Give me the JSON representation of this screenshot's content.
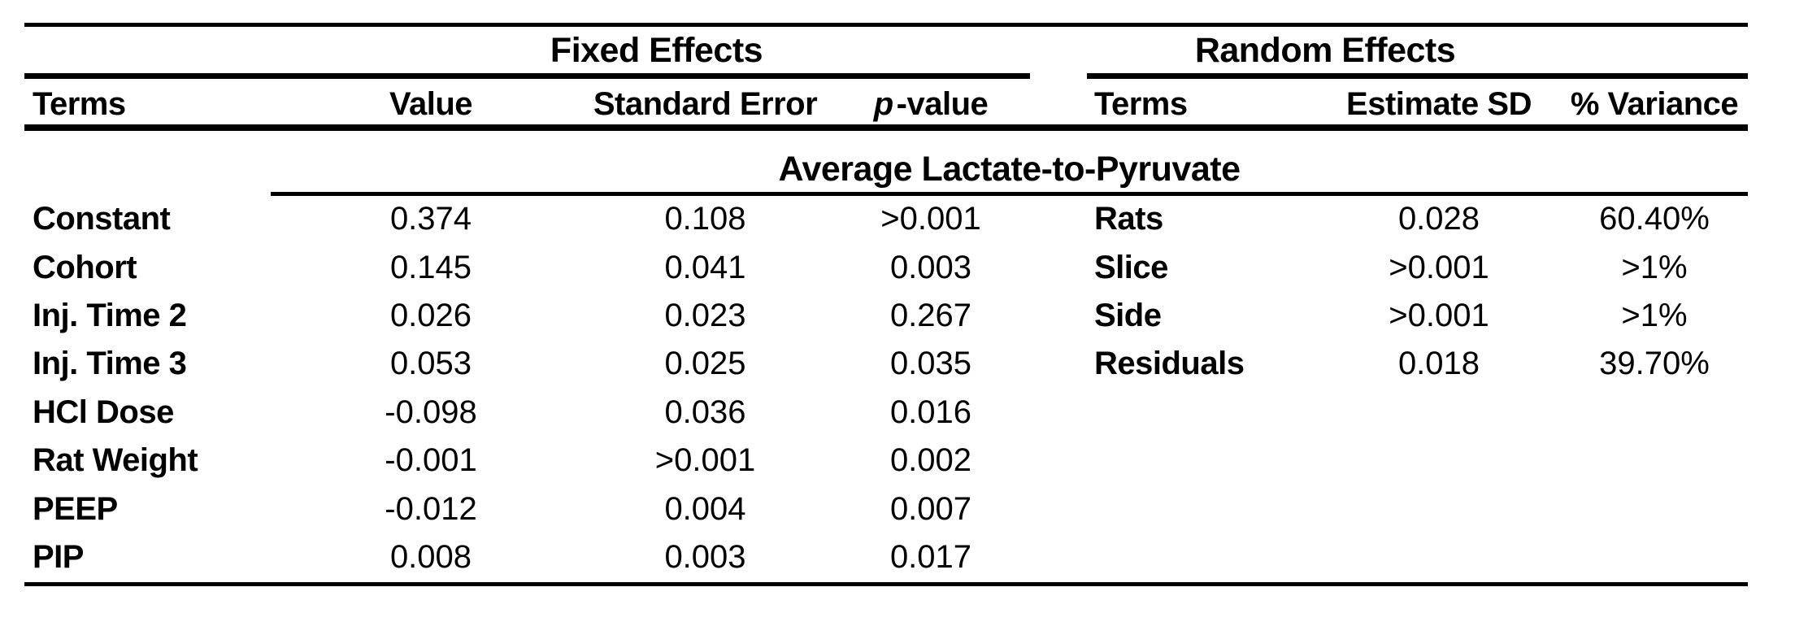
{
  "table": {
    "sections": {
      "fixed_title": "Fixed Effects",
      "random_title": "Random Effects"
    },
    "subtitle": "Average Lactate-to-Pyruvate",
    "fixed": {
      "headers": {
        "terms": "Terms",
        "value": "Value",
        "standard_error": "Standard Error",
        "p_italic": "p",
        "p_suffix": "-value"
      },
      "rows": [
        {
          "term": "Constant",
          "value": "0.374",
          "standard_error": "0.108",
          "p_value": ">0.001"
        },
        {
          "term": "Cohort",
          "value": "0.145",
          "standard_error": "0.041",
          "p_value": "0.003"
        },
        {
          "term": "Inj. Time 2",
          "value": "0.026",
          "standard_error": "0.023",
          "p_value": "0.267"
        },
        {
          "term": "Inj. Time 3",
          "value": "0.053",
          "standard_error": "0.025",
          "p_value": "0.035"
        },
        {
          "term": "HCl Dose",
          "value": "-0.098",
          "standard_error": "0.036",
          "p_value": "0.016"
        },
        {
          "term": "Rat Weight",
          "value": "-0.001",
          "standard_error": ">0.001",
          "p_value": "0.002"
        },
        {
          "term": "PEEP",
          "value": "-0.012",
          "standard_error": "0.004",
          "p_value": "0.007"
        },
        {
          "term": "PIP",
          "value": "0.008",
          "standard_error": "0.003",
          "p_value": "0.017"
        }
      ]
    },
    "random": {
      "headers": {
        "terms": "Terms",
        "estimate_sd": "Estimate SD",
        "variance": "% Variance"
      },
      "rows": [
        {
          "term": "Rats",
          "estimate_sd": "0.028",
          "variance": "60.40%"
        },
        {
          "term": "Slice",
          "estimate_sd": ">0.001",
          "variance": ">1%"
        },
        {
          "term": "Side",
          "estimate_sd": ">0.001",
          "variance": ">1%"
        },
        {
          "term": "Residuals",
          "estimate_sd": "0.018",
          "variance": "39.70%"
        }
      ]
    },
    "colors": {
      "text": "#000000",
      "rules": "#000000",
      "background": "#ffffff"
    }
  }
}
